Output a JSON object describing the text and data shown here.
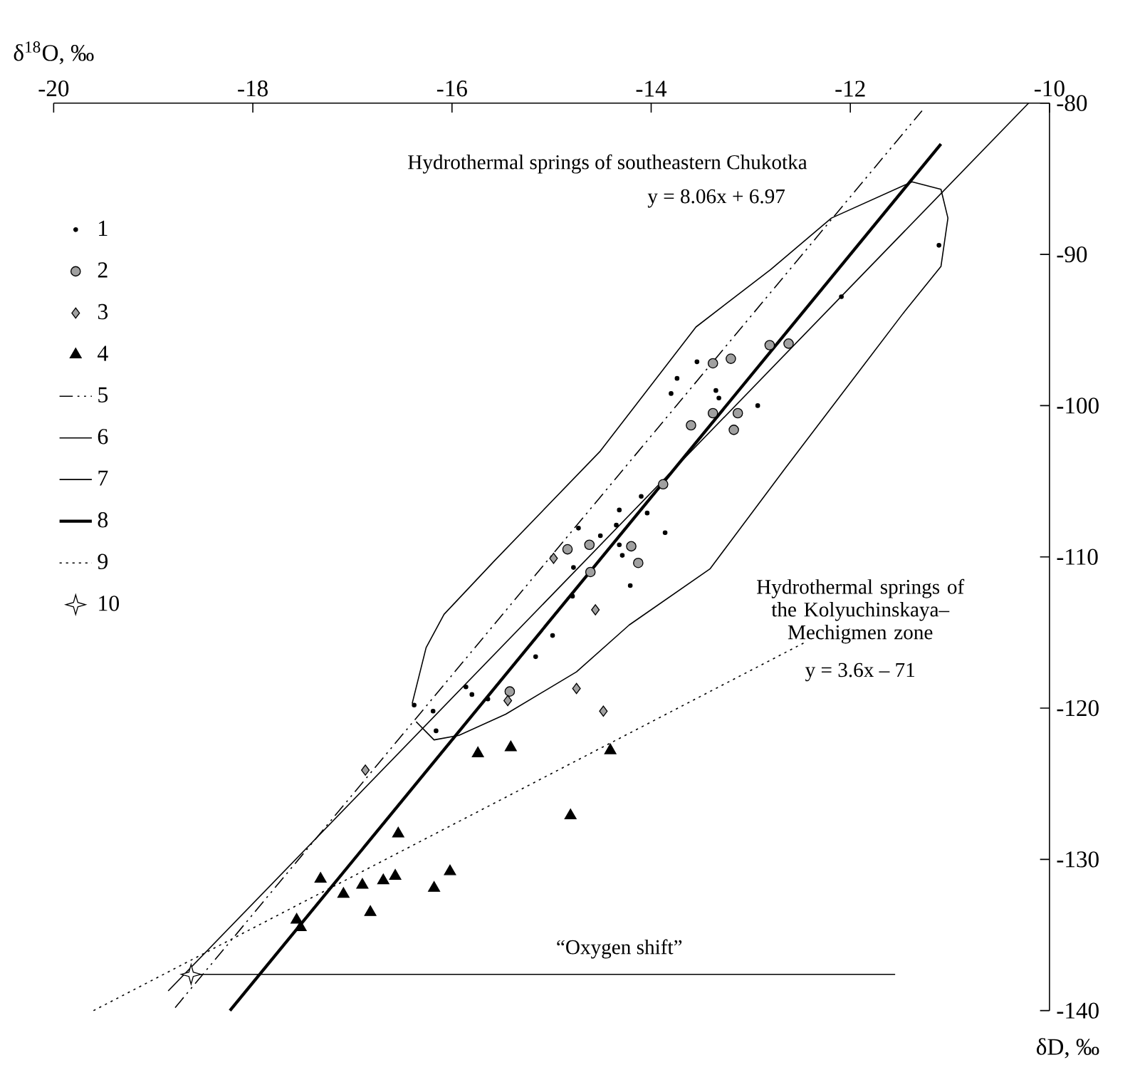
{
  "chart_data": {
    "type": "scatter",
    "xlabel": "δ$^{18}$O, ‰",
    "ylabel": "δD, ‰",
    "xlim": [
      -20,
      -10
    ],
    "ylim": [
      -140,
      -80
    ],
    "xticks": [
      -20,
      -18,
      -16,
      -14,
      -12,
      -10
    ],
    "yticks": [
      -140,
      -130,
      -120,
      -110,
      -100,
      -90,
      -80
    ],
    "grid": false,
    "legend": "top left",
    "series": [
      {
        "name": "1",
        "marker": "circle",
        "color": "#000000",
        "x": [
          -13.54,
          -13.74,
          -13.8,
          -13.35,
          -13.32,
          -12.93,
          -14.1,
          -14.32,
          -14.04,
          -14.73,
          -14.35,
          -14.51,
          -13.86,
          -14.32,
          -14.29,
          -14.78,
          -14.21,
          -14.79,
          -11.11,
          -12.09,
          -14.99,
          -15.16,
          -15.86,
          -15.8,
          -15.64,
          -16.38,
          -16.19,
          -16.16
        ],
        "values": [
          -97.1,
          -98.2,
          -99.2,
          -99.0,
          -99.5,
          -100.0,
          -106.0,
          -106.9,
          -107.1,
          -108.1,
          -107.9,
          -108.6,
          -108.4,
          -109.2,
          -109.9,
          -110.7,
          -111.9,
          -112.6,
          -89.4,
          -92.8,
          -115.2,
          -116.6,
          -118.6,
          -119.1,
          -119.4,
          -119.8,
          -120.2,
          -121.5
        ]
      },
      {
        "name": "2",
        "marker": "circle",
        "color": "#a0a0a0",
        "x": [
          -13.38,
          -13.2,
          -12.81,
          -12.62,
          -13.38,
          -13.13,
          -13.6,
          -13.17,
          -13.88,
          -14.84,
          -14.62,
          -14.2,
          -14.13,
          -14.61,
          -15.42
        ],
        "values": [
          -97.2,
          -96.9,
          -96.0,
          -95.9,
          -100.5,
          -100.5,
          -101.3,
          -101.6,
          -105.2,
          -109.5,
          -109.2,
          -109.3,
          -110.4,
          -111.0,
          -118.9
        ]
      },
      {
        "name": "3",
        "marker": "diamond",
        "color": "#a0a0a0",
        "x": [
          -14.98,
          -14.56,
          -15.44,
          -14.75,
          -14.48,
          -16.87
        ],
        "values": [
          -110.1,
          -113.5,
          -119.5,
          -118.7,
          -120.2,
          -124.1
        ]
      },
      {
        "name": "4",
        "marker": "triangle",
        "color": "#000000",
        "x": [
          -15.74,
          -15.41,
          -14.41,
          -14.81,
          -16.54,
          -17.32,
          -17.09,
          -16.9,
          -16.69,
          -16.57,
          -16.82,
          -16.18,
          -16.02,
          -17.56,
          -17.52
        ],
        "values": [
          -123.0,
          -122.6,
          -122.8,
          -127.1,
          -128.3,
          -131.3,
          -132.3,
          -131.7,
          -131.4,
          -131.1,
          -133.5,
          -131.9,
          -130.8,
          -134.0,
          -134.5
        ]
      },
      {
        "name": "5",
        "type": "line",
        "line_style": "dashed",
        "color": "#000000",
        "x": [
          -18.78,
          -11.28
        ],
        "values": [
          -139.8,
          -80.5
        ]
      },
      {
        "name": "6",
        "type": "line",
        "line_style": "solid",
        "color": "#000000",
        "x": [
          -16.4,
          -16.26,
          -16.08,
          -15.58,
          -14.51,
          -13.55,
          -12.8,
          -12.19,
          -11.38,
          -11.09,
          -11.02,
          -11.09,
          -11.47,
          -12.66,
          -13.41,
          -14.22,
          -14.75,
          -15.46,
          -15.93,
          -16.18,
          -16.36
        ],
        "values": [
          -119.7,
          -116.0,
          -113.8,
          -110.3,
          -103.0,
          -94.8,
          -91.0,
          -87.6,
          -85.2,
          -85.7,
          -87.6,
          -90.8,
          -93.9,
          -104.2,
          -110.8,
          -114.5,
          -117.6,
          -120.4,
          -121.8,
          -122.1,
          -120.9
        ]
      },
      {
        "name": "7",
        "type": "line",
        "line_style": "solid",
        "color": "#000000",
        "x": [
          -18.85,
          -10.21
        ],
        "values": [
          -138.7,
          -80.0
        ]
      },
      {
        "name": "8",
        "type": "line",
        "line_style": "solid",
        "color": "#000000",
        "x": [
          -18.23,
          -11.09
        ],
        "values": [
          -140.0,
          -82.7
        ]
      },
      {
        "name": "9",
        "type": "line",
        "line_style": "dotted",
        "color": "#000000",
        "x": [
          -19.6,
          -12.47
        ],
        "values": [
          -140.0,
          -115.7
        ]
      },
      {
        "name": "10",
        "marker": "star",
        "color": "#000000",
        "x": [
          -18.62
        ],
        "values": [
          -137.6
        ]
      },
      {
        "type": "line",
        "line_style": "solid",
        "color": "#000000",
        "x": [
          -18.62,
          -11.55
        ],
        "values": [
          -137.6,
          -137.6
        ]
      }
    ],
    "annotations": [
      "Hydrothermal springs of southeastern Chukotka",
      "y = 8.06x + 6.97",
      "Hydrothermal springs of the Kolyuchinskaya–Mechigmen zone",
      "y = 3.6x – 71",
      "“Oxygen shift”"
    ]
  }
}
